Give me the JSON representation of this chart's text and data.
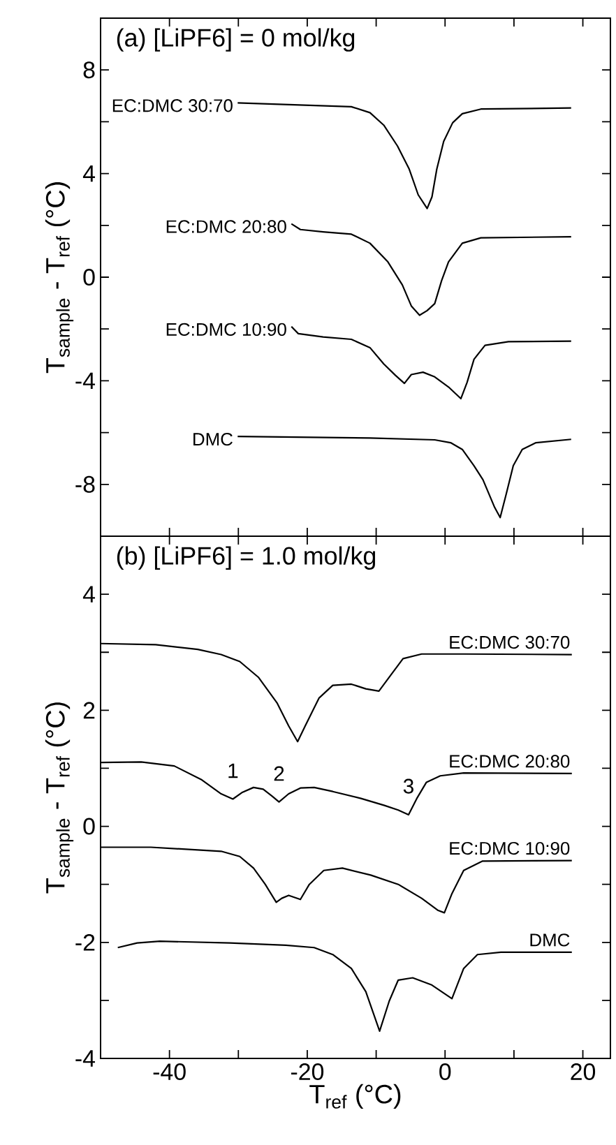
{
  "chart_data": [
    {
      "type": "line",
      "title": "(a)   [LiPF6] = 0 mol/kg",
      "ylabel": "T$_{sample}$ - T$_{ref}$ (°C)",
      "xlim": [
        -50,
        24
      ],
      "ylim": [
        -10,
        10
      ],
      "xticks": [
        -40,
        {
          "value": -30,
          "label": null
        },
        -20,
        {
          "value": -10,
          "label": null
        },
        0,
        {
          "value": 10,
          "label": null
        },
        20
      ],
      "yticks": [
        -8,
        {
          "value": -6,
          "label": null
        },
        -4,
        {
          "value": -2,
          "label": null
        },
        0,
        {
          "value": 2,
          "label": null
        },
        4,
        {
          "value": 6,
          "label": null
        },
        8
      ],
      "tick_labels": "y",
      "legend": "left",
      "series": [
        {
          "name": "EC:DMC 30:70",
          "color": "#000000",
          "x": [
            -30.1,
            -13.6,
            -10.9,
            -8.9,
            -6.9,
            -5.2,
            -3.9,
            -2.6,
            -1.9,
            -1.2,
            -0.2,
            1.1,
            2.5,
            5.2,
            18.3
          ],
          "values": [
            6.73,
            6.58,
            6.35,
            5.87,
            5.06,
            4.17,
            3.18,
            2.65,
            3.1,
            4.17,
            5.24,
            5.96,
            6.31,
            6.49,
            6.53
          ]
        },
        {
          "name": "EC:DMC 20:80",
          "color": "#000000",
          "x": [
            -22.3,
            -21.0,
            -17.7,
            -13.6,
            -10.9,
            -8.3,
            -6.2,
            -4.9,
            -3.7,
            -2.6,
            -1.5,
            -0.5,
            0.5,
            2.5,
            5.2,
            18.3
          ],
          "values": [
            2.06,
            1.84,
            1.75,
            1.66,
            1.31,
            0.59,
            -0.3,
            -1.11,
            -1.47,
            -1.29,
            -1.02,
            -0.13,
            0.59,
            1.31,
            1.52,
            1.56
          ]
        },
        {
          "name": "EC:DMC 10:90",
          "color": "#000000",
          "x": [
            -22.3,
            -21.3,
            -17.7,
            -13.6,
            -10.9,
            -8.9,
            -7.2,
            -5.9,
            -4.9,
            -3.2,
            -1.5,
            0.5,
            2.3,
            3.2,
            4.2,
            5.8,
            9.2,
            18.3
          ],
          "values": [
            -1.91,
            -2.18,
            -2.31,
            -2.4,
            -2.72,
            -3.35,
            -3.79,
            -4.1,
            -3.76,
            -3.67,
            -3.85,
            -4.24,
            -4.69,
            -4.06,
            -3.17,
            -2.63,
            -2.49,
            -2.47
          ]
        },
        {
          "name": "DMC",
          "color": "#000000",
          "x": [
            -30.1,
            -10.9,
            -1.5,
            0.8,
            2.5,
            4.2,
            5.5,
            7.2,
            8.0,
            8.9,
            9.9,
            11.2,
            13.2,
            18.3
          ],
          "values": [
            -6.15,
            -6.21,
            -6.28,
            -6.39,
            -6.65,
            -7.28,
            -7.82,
            -8.89,
            -9.28,
            -8.35,
            -7.28,
            -6.65,
            -6.39,
            -6.26
          ]
        }
      ]
    },
    {
      "type": "line",
      "title": "(b)   [LiPF6] = 1.0 mol/kg",
      "xlabel": "T$_{ref}$ (°C)",
      "ylabel": "T$_{sample}$ - T$_{ref}$ (°C)",
      "xlim": [
        -50,
        24
      ],
      "ylim": [
        -4,
        5
      ],
      "xticks": [
        -40,
        {
          "value": -30,
          "label": null
        },
        -20,
        {
          "value": -10,
          "label": null
        },
        0,
        {
          "value": 10,
          "label": null
        },
        20
      ],
      "yticks": [
        -4,
        {
          "value": -3,
          "label": null
        },
        -2,
        {
          "value": -1,
          "label": null
        },
        0,
        {
          "value": 1,
          "label": null
        },
        2,
        {
          "value": 3,
          "label": null
        },
        4
      ],
      "legend": "right",
      "annotations": [
        {
          "text": "1",
          "x": -30.8,
          "y": 0.47
        },
        {
          "text": "2",
          "x": -24.1,
          "y": 0.42
        },
        {
          "text": "3",
          "x": -5.3,
          "y": 0.2
        }
      ],
      "series": [
        {
          "name": "EC:DMC 30:70",
          "color": "#000000",
          "x": [
            -50.0,
            -42.0,
            -35.9,
            -32.5,
            -29.8,
            -27.1,
            -24.4,
            -22.7,
            -21.4,
            -20.3,
            -18.3,
            -16.3,
            -13.6,
            -11.5,
            -9.6,
            -8.1,
            -6.1,
            -3.4,
            2.7,
            18.4
          ],
          "values": [
            3.15,
            3.13,
            3.05,
            2.96,
            2.84,
            2.57,
            2.13,
            1.73,
            1.46,
            1.73,
            2.21,
            2.43,
            2.45,
            2.37,
            2.33,
            2.57,
            2.89,
            2.97,
            2.97,
            2.96
          ]
        },
        {
          "name": "EC:DMC 20:80",
          "color": "#000000",
          "x": [
            -50.0,
            -44.1,
            -39.3,
            -35.3,
            -32.5,
            -30.8,
            -29.5,
            -27.8,
            -26.4,
            -25.1,
            -24.1,
            -22.7,
            -21.0,
            -19.0,
            -16.3,
            -12.2,
            -8.8,
            -6.8,
            -5.3,
            -4.1,
            -2.7,
            -0.7,
            2.7,
            18.4
          ],
          "values": [
            1.1,
            1.11,
            1.04,
            0.8,
            0.56,
            0.47,
            0.58,
            0.67,
            0.64,
            0.52,
            0.42,
            0.56,
            0.66,
            0.67,
            0.6,
            0.48,
            0.36,
            0.28,
            0.2,
            0.48,
            0.76,
            0.87,
            0.92,
            0.91
          ]
        },
        {
          "name": "EC:DMC 10:90",
          "color": "#000000",
          "x": [
            -50.0,
            -42.7,
            -32.5,
            -29.8,
            -27.8,
            -26.1,
            -24.5,
            -23.7,
            -22.7,
            -21.0,
            -19.7,
            -17.6,
            -14.9,
            -10.8,
            -6.8,
            -3.4,
            -1.0,
            -0.1,
            1.0,
            2.7,
            5.4,
            18.4
          ],
          "values": [
            -0.36,
            -0.36,
            -0.43,
            -0.52,
            -0.72,
            -1.0,
            -1.31,
            -1.24,
            -1.19,
            -1.26,
            -1.0,
            -0.76,
            -0.72,
            -0.84,
            -1.0,
            -1.24,
            -1.45,
            -1.49,
            -1.16,
            -0.76,
            -0.6,
            -0.59
          ]
        },
        {
          "name": "DMC",
          "color": "#000000",
          "x": [
            -47.5,
            -44.7,
            -41.4,
            -31.2,
            -23.1,
            -19.0,
            -16.3,
            -13.6,
            -11.5,
            -9.5,
            -8.1,
            -6.8,
            -4.7,
            -2.0,
            1.0,
            2.7,
            4.7,
            8.1,
            18.4
          ],
          "values": [
            -2.09,
            -2.01,
            -1.98,
            -2.01,
            -2.05,
            -2.09,
            -2.21,
            -2.45,
            -2.85,
            -3.53,
            -3.01,
            -2.65,
            -2.61,
            -2.73,
            -2.97,
            -2.45,
            -2.21,
            -2.17,
            -2.17
          ]
        }
      ]
    }
  ]
}
